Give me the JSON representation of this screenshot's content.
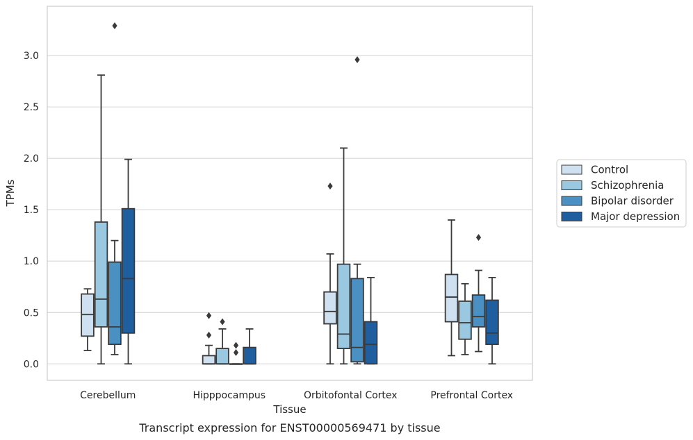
{
  "caption": "Transcript expression for ENST00000569471 by tissue",
  "chart_data": {
    "type": "box",
    "xlabel": "Tissue",
    "ylabel": "TPMs",
    "ylim": [
      -0.16,
      3.48
    ],
    "yticks": [
      0.0,
      0.5,
      1.0,
      1.5,
      2.0,
      2.5,
      3.0
    ],
    "ytick_labels": [
      "0.0",
      "0.5",
      "1.0",
      "1.5",
      "2.0",
      "2.5",
      "3.0"
    ],
    "grid": true,
    "legend_position": "right",
    "categories": [
      "Cerebellum",
      "Hipppocampus",
      "Orbitofontal Cortex",
      "Prefrontal Cortex"
    ],
    "series": [
      {
        "name": "Control",
        "color": "#cfe0f1",
        "boxes": [
          {
            "whislo": 0.13,
            "q1": 0.27,
            "med": 0.48,
            "q3": 0.68,
            "whishi": 0.73,
            "fliers": []
          },
          {
            "whislo": 0.0,
            "q1": 0.0,
            "med": 0.0,
            "q3": 0.08,
            "whishi": 0.18,
            "fliers": [
              0.28,
              0.47
            ]
          },
          {
            "whislo": 0.0,
            "q1": 0.39,
            "med": 0.51,
            "q3": 0.7,
            "whishi": 1.07,
            "fliers": [
              1.73
            ]
          },
          {
            "whislo": 0.08,
            "q1": 0.41,
            "med": 0.65,
            "q3": 0.87,
            "whishi": 1.4,
            "fliers": []
          }
        ]
      },
      {
        "name": "Schizophrenia",
        "color": "#9ac8e0",
        "boxes": [
          {
            "whislo": 0.0,
            "q1": 0.36,
            "med": 0.63,
            "q3": 1.38,
            "whishi": 2.81,
            "fliers": []
          },
          {
            "whislo": 0.0,
            "q1": 0.0,
            "med": 0.0,
            "q3": 0.15,
            "whishi": 0.34,
            "fliers": [
              0.41
            ]
          },
          {
            "whislo": 0.0,
            "q1": 0.15,
            "med": 0.29,
            "q3": 0.97,
            "whishi": 2.1,
            "fliers": []
          },
          {
            "whislo": 0.09,
            "q1": 0.24,
            "med": 0.4,
            "q3": 0.61,
            "whishi": 0.78,
            "fliers": []
          }
        ]
      },
      {
        "name": "Bipolar disorder",
        "color": "#4a90c2",
        "boxes": [
          {
            "whislo": 0.09,
            "q1": 0.19,
            "med": 0.36,
            "q3": 0.99,
            "whishi": 1.2,
            "fliers": [
              3.29
            ]
          },
          {
            "whislo": 0.0,
            "q1": 0.0,
            "med": 0.0,
            "q3": 0.0,
            "whishi": 0.0,
            "fliers": [
              0.11,
              0.18
            ]
          },
          {
            "whislo": 0.0,
            "q1": 0.02,
            "med": 0.16,
            "q3": 0.83,
            "whishi": 0.97,
            "fliers": [
              2.96
            ]
          },
          {
            "whislo": 0.12,
            "q1": 0.36,
            "med": 0.46,
            "q3": 0.67,
            "whishi": 0.91,
            "fliers": [
              1.23
            ]
          }
        ]
      },
      {
        "name": "Major depression",
        "color": "#1f5fa0",
        "boxes": [
          {
            "whislo": 0.0,
            "q1": 0.3,
            "med": 0.83,
            "q3": 1.51,
            "whishi": 1.99,
            "fliers": []
          },
          {
            "whislo": 0.0,
            "q1": 0.0,
            "med": 0.0,
            "q3": 0.16,
            "whishi": 0.34,
            "fliers": []
          },
          {
            "whislo": 0.0,
            "q1": 0.0,
            "med": 0.19,
            "q3": 0.41,
            "whishi": 0.84,
            "fliers": []
          },
          {
            "whislo": 0.0,
            "q1": 0.19,
            "med": 0.3,
            "q3": 0.62,
            "whishi": 0.84,
            "fliers": []
          }
        ]
      }
    ]
  }
}
